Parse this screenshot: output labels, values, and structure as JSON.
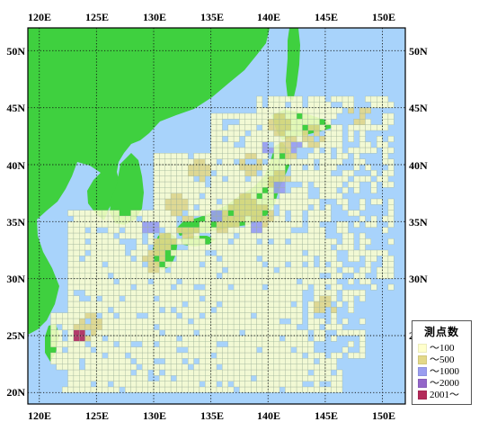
{
  "map": {
    "lon_range": [
      119,
      152
    ],
    "lat_range": [
      19,
      52
    ],
    "lon_ticks": [
      "120E",
      "125E",
      "130E",
      "135E",
      "140E",
      "145E",
      "150E"
    ],
    "lat_ticks": [
      "50N",
      "45N",
      "40N",
      "35N",
      "30N",
      "25N",
      "20N"
    ],
    "colors": {
      "ocean": "#a8d3fb",
      "land": "#3fd03f",
      "graticule": "#111111",
      "frame": "#000000",
      "cell_border": "#9fb39a"
    }
  },
  "legend": {
    "title": "測点数",
    "items": [
      {
        "label": "～100",
        "color": "#ffffcc"
      },
      {
        "label": "～500",
        "color": "#e3d888"
      },
      {
        "label": "～1000",
        "color": "#9a9df0"
      },
      {
        "label": "～2000",
        "color": "#9366c9"
      },
      {
        "label": "2001～",
        "color": "#b32a5a"
      }
    ]
  }
}
